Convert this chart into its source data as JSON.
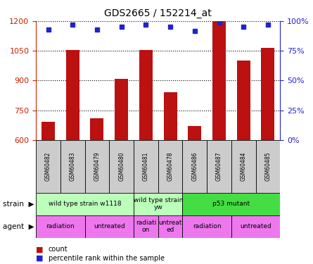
{
  "title": "GDS2665 / 152214_at",
  "samples": [
    "GSM60482",
    "GSM60483",
    "GSM60479",
    "GSM60480",
    "GSM60481",
    "GSM60478",
    "GSM60486",
    "GSM60487",
    "GSM60484",
    "GSM60485"
  ],
  "counts": [
    690,
    1055,
    710,
    910,
    1055,
    840,
    670,
    1200,
    1000,
    1065
  ],
  "percentiles": [
    93,
    97,
    93,
    95,
    97,
    95,
    92,
    99,
    95,
    97
  ],
  "ylim_left": [
    600,
    1200
  ],
  "ylim_right": [
    0,
    100
  ],
  "yticks_left": [
    600,
    750,
    900,
    1050,
    1200
  ],
  "yticks_right": [
    0,
    25,
    50,
    75,
    100
  ],
  "bar_color": "#bb1111",
  "dot_color": "#2222cc",
  "strain_groups": [
    {
      "label": "wild type strain w1118",
      "start": 0,
      "end": 4,
      "color": "#bbffbb"
    },
    {
      "label": "wild type strain\nyw",
      "start": 4,
      "end": 6,
      "color": "#bbffbb"
    },
    {
      "label": "p53 mutant",
      "start": 6,
      "end": 10,
      "color": "#44dd44"
    }
  ],
  "agent_groups": [
    {
      "label": "radiation",
      "start": 0,
      "end": 2,
      "color": "#ee77ee"
    },
    {
      "label": "untreated",
      "start": 2,
      "end": 4,
      "color": "#ee77ee"
    },
    {
      "label": "radiati\non",
      "start": 4,
      "end": 5,
      "color": "#ee77ee"
    },
    {
      "label": "untreat\ned",
      "start": 5,
      "end": 6,
      "color": "#ee77ee"
    },
    {
      "label": "radiation",
      "start": 6,
      "end": 8,
      "color": "#ee77ee"
    },
    {
      "label": "untreated",
      "start": 8,
      "end": 10,
      "color": "#ee77ee"
    }
  ],
  "sample_bg_color": "#cccccc",
  "legend_count_color": "#bb1111",
  "legend_pct_color": "#2222cc",
  "tick_label_color_left": "#cc2200",
  "tick_label_color_right": "#2222cc"
}
